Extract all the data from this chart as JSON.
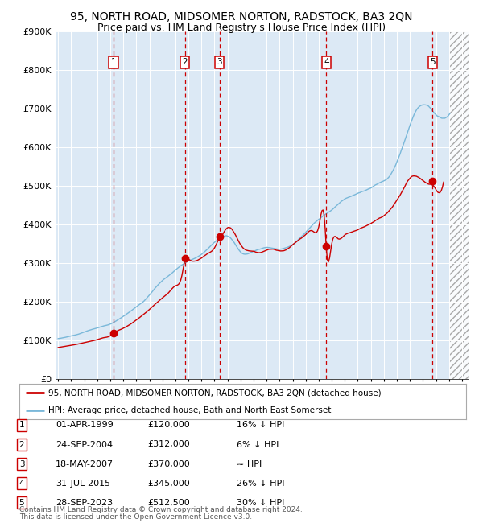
{
  "title": "95, NORTH ROAD, MIDSOMER NORTON, RADSTOCK, BA3 2QN",
  "subtitle": "Price paid vs. HM Land Registry's House Price Index (HPI)",
  "title_fontsize": 10,
  "subtitle_fontsize": 9,
  "background_color": "#ffffff",
  "plot_bg_color": "#dce9f5",
  "hpi_color": "#7ab8d9",
  "price_color": "#cc0000",
  "grid_color": "#ffffff",
  "dashed_line_color": "#cc0000",
  "ylim": [
    0,
    900000
  ],
  "yticks": [
    0,
    100000,
    200000,
    300000,
    400000,
    500000,
    600000,
    700000,
    800000,
    900000
  ],
  "ytick_labels": [
    "£0",
    "£100K",
    "£200K",
    "£300K",
    "£400K",
    "£500K",
    "£600K",
    "£700K",
    "£800K",
    "£900K"
  ],
  "xlim_start": 1994.8,
  "xlim_end": 2026.5,
  "xtick_start": 1995,
  "xtick_end": 2026,
  "legend_property_label": "95, NORTH ROAD, MIDSOMER NORTON, RADSTOCK, BA3 2QN (detached house)",
  "legend_hpi_label": "HPI: Average price, detached house, Bath and North East Somerset",
  "transactions": [
    {
      "num": 1,
      "date": 1999.25,
      "price": 120000,
      "date_str": "01-APR-1999",
      "price_str": "£120,000",
      "hpi_str": "16% ↓ HPI"
    },
    {
      "num": 2,
      "date": 2004.73,
      "price": 312000,
      "date_str": "24-SEP-2004",
      "price_str": "£312,000",
      "hpi_str": "6% ↓ HPI"
    },
    {
      "num": 3,
      "date": 2007.38,
      "price": 370000,
      "date_str": "18-MAY-2007",
      "price_str": "£370,000",
      "hpi_str": "≈ HPI"
    },
    {
      "num": 4,
      "date": 2015.58,
      "price": 345000,
      "date_str": "31-JUL-2015",
      "price_str": "£345,000",
      "hpi_str": "26% ↓ HPI"
    },
    {
      "num": 5,
      "date": 2023.75,
      "price": 512500,
      "date_str": "28-SEP-2023",
      "price_str": "£512,500",
      "hpi_str": "30% ↓ HPI"
    }
  ],
  "footer_line1": "Contains HM Land Registry data © Crown copyright and database right 2024.",
  "footer_line2": "This data is licensed under the Open Government Licence v3.0.",
  "hpi_data_x": [
    1995.0,
    1995.5,
    1996.0,
    1996.5,
    1997.0,
    1997.5,
    1998.0,
    1998.5,
    1999.0,
    1999.5,
    2000.0,
    2000.5,
    2001.0,
    2001.5,
    2002.0,
    2002.5,
    2003.0,
    2003.5,
    2004.0,
    2004.5,
    2005.0,
    2005.5,
    2006.0,
    2006.5,
    2007.0,
    2007.5,
    2008.0,
    2008.5,
    2009.0,
    2009.5,
    2010.0,
    2010.5,
    2011.0,
    2011.5,
    2012.0,
    2012.5,
    2013.0,
    2013.5,
    2014.0,
    2014.5,
    2015.0,
    2015.5,
    2016.0,
    2016.5,
    2017.0,
    2017.5,
    2018.0,
    2018.5,
    2019.0,
    2019.5,
    2020.0,
    2020.5,
    2021.0,
    2021.5,
    2022.0,
    2022.5,
    2023.0,
    2023.5,
    2024.0,
    2024.5,
    2025.0
  ],
  "hpi_data_y": [
    105000,
    108000,
    112000,
    116000,
    122000,
    128000,
    133000,
    138000,
    143000,
    152000,
    163000,
    175000,
    188000,
    200000,
    218000,
    238000,
    255000,
    268000,
    282000,
    295000,
    305000,
    312000,
    322000,
    338000,
    355000,
    368000,
    372000,
    355000,
    330000,
    325000,
    332000,
    338000,
    342000,
    340000,
    338000,
    342000,
    350000,
    365000,
    382000,
    400000,
    415000,
    428000,
    440000,
    455000,
    468000,
    475000,
    482000,
    490000,
    498000,
    508000,
    515000,
    530000,
    565000,
    610000,
    660000,
    700000,
    715000,
    710000,
    690000,
    680000,
    690000
  ],
  "prop_data_x": [
    1995.0,
    1995.5,
    1996.0,
    1996.5,
    1997.0,
    1997.5,
    1998.0,
    1998.5,
    1999.0,
    1999.25,
    1999.5,
    2000.0,
    2000.5,
    2001.0,
    2001.5,
    2002.0,
    2002.5,
    2003.0,
    2003.5,
    2004.0,
    2004.5,
    2004.73,
    2005.0,
    2005.5,
    2006.0,
    2006.5,
    2007.0,
    2007.38,
    2007.5,
    2008.0,
    2008.5,
    2009.0,
    2009.5,
    2010.0,
    2010.5,
    2011.0,
    2011.5,
    2012.0,
    2012.5,
    2013.0,
    2013.5,
    2014.0,
    2014.5,
    2015.0,
    2015.5,
    2015.58,
    2016.0,
    2016.5,
    2017.0,
    2017.5,
    2018.0,
    2018.5,
    2019.0,
    2019.5,
    2020.0,
    2020.5,
    2021.0,
    2021.5,
    2022.0,
    2022.5,
    2023.0,
    2023.5,
    2023.75,
    2024.0,
    2024.5
  ],
  "prop_data_y": [
    82000,
    85000,
    88000,
    91000,
    95000,
    99000,
    103000,
    108000,
    113000,
    120000,
    125000,
    133000,
    143000,
    155000,
    168000,
    182000,
    198000,
    213000,
    228000,
    245000,
    272000,
    312000,
    315000,
    310000,
    318000,
    330000,
    345000,
    370000,
    375000,
    400000,
    388000,
    355000,
    340000,
    338000,
    335000,
    342000,
    345000,
    340000,
    342000,
    355000,
    368000,
    380000,
    390000,
    400000,
    395000,
    345000,
    355000,
    368000,
    378000,
    385000,
    392000,
    400000,
    408000,
    418000,
    428000,
    445000,
    470000,
    500000,
    530000,
    535000,
    525000,
    515000,
    512500,
    500000,
    505000
  ]
}
